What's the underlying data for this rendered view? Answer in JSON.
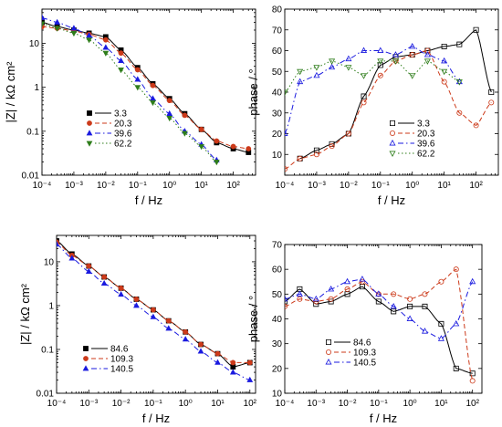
{
  "chart_data": [
    {
      "id": "a",
      "type": "scatter",
      "title": "",
      "xlabel": "f / Hz",
      "ylabel": "|Z| / kΩ cm²",
      "xscale": "log",
      "yscale": "log",
      "xlim": [
        0.0001,
        500
      ],
      "ylim": [
        0.01,
        60
      ],
      "xticks": [
        0.0001,
        0.001,
        0.01,
        0.1,
        1,
        10,
        100
      ],
      "xticklabels": [
        "10⁻⁴",
        "10⁻³",
        "10⁻²",
        "10⁻¹",
        "10⁰",
        "10¹",
        "10²"
      ],
      "yticks": [
        0.01,
        0.1,
        1,
        10
      ],
      "yticklabels": [
        "0.01",
        "0.1",
        "1",
        "10"
      ],
      "legend_position": "center-right",
      "series": [
        {
          "name": "3.3",
          "color": "#000000",
          "marker": "square-filled",
          "line": "solid",
          "x": [
            0.0001,
            0.0003,
            0.001,
            0.003,
            0.01,
            0.03,
            0.1,
            0.3,
            1,
            3,
            10,
            30,
            100,
            300
          ],
          "y": [
            30,
            24,
            20,
            17,
            14,
            7,
            2.8,
            1.2,
            0.55,
            0.25,
            0.11,
            0.055,
            0.04,
            0.033
          ]
        },
        {
          "name": "20.3",
          "color": "#cc3a1a",
          "marker": "circle-filled",
          "line": "dash",
          "x": [
            0.0001,
            0.0003,
            0.001,
            0.003,
            0.01,
            0.03,
            0.1,
            0.3,
            1,
            3,
            10,
            30,
            100,
            300
          ],
          "y": [
            24,
            22,
            19,
            16,
            12,
            6,
            2.5,
            1.1,
            0.5,
            0.23,
            0.11,
            0.06,
            0.045,
            0.04
          ]
        },
        {
          "name": "39.6",
          "color": "#1a1adf",
          "marker": "triangle-up-filled",
          "line": "dashdot",
          "x": [
            0.0001,
            0.0003,
            0.001,
            0.003,
            0.01,
            0.03,
            0.1,
            0.3,
            1,
            3,
            10,
            30
          ],
          "y": [
            38,
            30,
            22,
            15,
            8,
            4,
            1.5,
            0.55,
            0.25,
            0.1,
            0.05,
            0.022
          ]
        },
        {
          "name": "62.2",
          "color": "#2e7d1a",
          "marker": "triangle-down-filled",
          "line": "dot",
          "x": [
            0.0001,
            0.0003,
            0.001,
            0.003,
            0.01,
            0.03,
            0.1,
            0.3,
            1,
            3,
            10,
            30
          ],
          "y": [
            28,
            22,
            17,
            12,
            6,
            2.5,
            1,
            0.45,
            0.2,
            0.09,
            0.045,
            0.02
          ]
        }
      ]
    },
    {
      "id": "b",
      "type": "scatter",
      "title": "",
      "xlabel": "f / Hz",
      "ylabel": "phase / °",
      "xscale": "log",
      "yscale": "linear",
      "xlim": [
        0.0001,
        500
      ],
      "ylim": [
        0,
        80
      ],
      "xticks": [
        0.0001,
        0.001,
        0.01,
        0.1,
        1,
        10,
        100
      ],
      "xticklabels": [
        "10⁻⁴",
        "10⁻³",
        "10⁻²",
        "10⁻¹",
        "10⁰",
        "10¹",
        "10²"
      ],
      "yticks": [
        0,
        10,
        20,
        30,
        40,
        50,
        60,
        70,
        80
      ],
      "yticklabels": [
        "",
        "10",
        "20",
        "30",
        "40",
        "50",
        "60",
        "70",
        "80"
      ],
      "legend_position": "lower-right",
      "series": [
        {
          "name": "3.3",
          "color": "#000000",
          "marker": "square-open",
          "line": "solid",
          "x": [
            0.0003,
            0.001,
            0.003,
            0.01,
            0.03,
            0.1,
            0.3,
            1,
            3,
            10,
            30,
            100,
            300
          ],
          "y": [
            8,
            12,
            15,
            20,
            38,
            53,
            57,
            58,
            60,
            62,
            63,
            70,
            40
          ]
        },
        {
          "name": "20.3",
          "color": "#cc3a1a",
          "marker": "circle-open",
          "line": "dash",
          "x": [
            0.0001,
            0.0003,
            0.001,
            0.003,
            0.01,
            0.03,
            0.1,
            0.3,
            1,
            3,
            10,
            30,
            100,
            300
          ],
          "y": [
            3,
            8,
            10,
            14,
            20,
            35,
            48,
            55,
            58,
            60,
            45,
            30,
            24,
            35
          ]
        },
        {
          "name": "39.6",
          "color": "#1a1adf",
          "marker": "triangle-up-open",
          "line": "dashdot",
          "x": [
            0.0001,
            0.0003,
            0.001,
            0.003,
            0.01,
            0.03,
            0.1,
            0.3,
            1,
            3,
            10,
            30
          ],
          "y": [
            20,
            45,
            48,
            52,
            56,
            60,
            60,
            58,
            62,
            58,
            55,
            45
          ]
        },
        {
          "name": "62.2",
          "color": "#2e7d1a",
          "marker": "triangle-down-open",
          "line": "dot",
          "x": [
            0.0001,
            0.0003,
            0.001,
            0.003,
            0.01,
            0.03,
            0.1,
            0.3,
            1,
            3,
            10,
            30
          ],
          "y": [
            40,
            50,
            52,
            55,
            52,
            48,
            55,
            55,
            48,
            55,
            50,
            45
          ]
        }
      ]
    },
    {
      "id": "c",
      "type": "scatter",
      "title": "",
      "xlabel": "f / Hz",
      "ylabel": "|Z| / kΩ cm²",
      "xscale": "log",
      "yscale": "log",
      "xlim": [
        0.0001,
        150
      ],
      "ylim": [
        0.01,
        40
      ],
      "xticks": [
        0.0001,
        0.001,
        0.01,
        0.1,
        1,
        10,
        100
      ],
      "xticklabels": [
        "10⁻⁴",
        "10⁻³",
        "10⁻²",
        "10⁻¹",
        "10⁰",
        "10¹",
        "10²"
      ],
      "yticks": [
        0.01,
        0.1,
        1,
        10
      ],
      "yticklabels": [
        "0.01",
        "0.1",
        "1",
        "10"
      ],
      "legend_position": "lower-left",
      "series": [
        {
          "name": "84.6",
          "color": "#000000",
          "marker": "square-filled",
          "line": "solid",
          "x": [
            0.0001,
            0.0003,
            0.001,
            0.003,
            0.01,
            0.03,
            0.1,
            0.3,
            1,
            3,
            10,
            30,
            100
          ],
          "y": [
            30,
            15,
            8,
            4.5,
            2.5,
            1.4,
            0.8,
            0.45,
            0.25,
            0.13,
            0.08,
            0.04,
            0.05
          ]
        },
        {
          "name": "109.3",
          "color": "#cc3a1a",
          "marker": "circle-filled",
          "line": "dash",
          "x": [
            0.0001,
            0.0003,
            0.001,
            0.003,
            0.01,
            0.03,
            0.1,
            0.3,
            1,
            3,
            10,
            30,
            100
          ],
          "y": [
            28,
            14,
            8,
            4.5,
            2.5,
            1.4,
            0.8,
            0.45,
            0.25,
            0.13,
            0.08,
            0.05,
            0.05
          ]
        },
        {
          "name": "140.5",
          "color": "#1a1adf",
          "marker": "triangle-up-filled",
          "line": "dashdot",
          "x": [
            0.0001,
            0.0003,
            0.001,
            0.003,
            0.01,
            0.03,
            0.1,
            0.3,
            1,
            3,
            10,
            30,
            100
          ],
          "y": [
            25,
            12,
            6,
            3.2,
            1.8,
            1,
            0.55,
            0.3,
            0.17,
            0.09,
            0.05,
            0.03,
            0.02
          ]
        }
      ]
    },
    {
      "id": "d",
      "type": "scatter",
      "title": "",
      "xlabel": "f / Hz",
      "ylabel": "phase / °",
      "xscale": "log",
      "yscale": "linear",
      "xlim": [
        0.0001,
        200
      ],
      "ylim": [
        10,
        70
      ],
      "xticks": [
        0.0001,
        0.001,
        0.01,
        0.1,
        1,
        10,
        100
      ],
      "xticklabels": [
        "10⁻⁴",
        "10⁻³",
        "10⁻²",
        "10⁻¹",
        "10⁰",
        "10¹",
        "10²"
      ],
      "yticks": [
        10,
        20,
        30,
        40,
        50,
        60,
        70
      ],
      "yticklabels": [
        "10",
        "20",
        "30",
        "40",
        "50",
        "60",
        "70"
      ],
      "legend_position": "lower-right",
      "series": [
        {
          "name": "84.6",
          "color": "#000000",
          "marker": "square-open",
          "line": "solid",
          "x": [
            0.0001,
            0.0003,
            0.001,
            0.003,
            0.01,
            0.03,
            0.1,
            0.3,
            1,
            3,
            10,
            30,
            100
          ],
          "y": [
            47,
            52,
            46,
            47,
            50,
            53,
            47,
            43,
            45,
            45,
            38,
            20,
            18
          ]
        },
        {
          "name": "109.3",
          "color": "#cc3a1a",
          "marker": "circle-open",
          "line": "dash",
          "x": [
            0.0001,
            0.0003,
            0.001,
            0.003,
            0.01,
            0.03,
            0.1,
            0.3,
            1,
            3,
            10,
            30,
            100
          ],
          "y": [
            45,
            48,
            47,
            48,
            52,
            55,
            50,
            50,
            48,
            50,
            55,
            60,
            15
          ]
        },
        {
          "name": "140.5",
          "color": "#1a1adf",
          "marker": "triangle-up-open",
          "line": "dashdot",
          "x": [
            0.0001,
            0.0003,
            0.001,
            0.003,
            0.01,
            0.03,
            0.1,
            0.3,
            1,
            3,
            10,
            30,
            100
          ],
          "y": [
            48,
            50,
            48,
            52,
            55,
            56,
            50,
            45,
            40,
            35,
            32,
            38,
            55
          ]
        }
      ]
    }
  ]
}
